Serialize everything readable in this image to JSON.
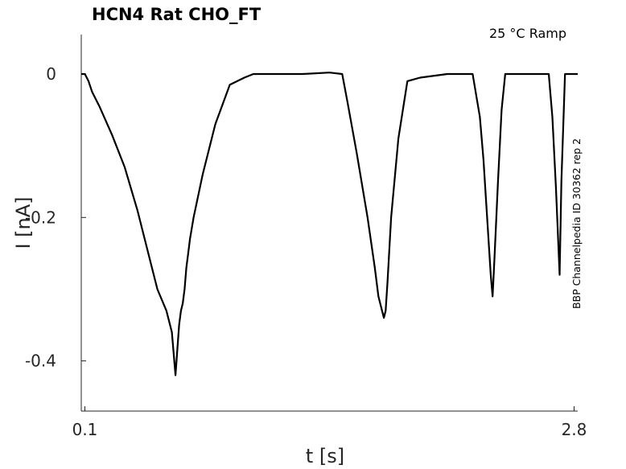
{
  "chart_data": {
    "type": "line",
    "title": "HCN4  Rat  CHO_FT",
    "annotation": "25 °C  Ramp",
    "side_label": "BBP Channelpedia ID 30362 rep 2",
    "xlabel": "t [s]",
    "ylabel": "I [nA]",
    "xlim": [
      0.08,
      2.82
    ],
    "ylim": [
      -0.47,
      0.055
    ],
    "x_ticks": [
      0.1,
      2.8
    ],
    "x_tick_labels": [
      "0.1",
      "2.8"
    ],
    "y_ticks": [
      0,
      -0.2,
      -0.4
    ],
    "y_tick_labels": [
      "0",
      "-0.2",
      "-0.4"
    ],
    "grid": false,
    "series": [
      {
        "color": "#000000",
        "x": [
          0.08,
          0.1,
          0.12,
          0.14,
          0.18,
          0.25,
          0.32,
          0.39,
          0.45,
          0.5,
          0.55,
          0.58,
          0.6,
          0.62,
          0.63,
          0.64,
          0.65,
          0.66,
          0.67,
          0.68,
          0.7,
          0.75,
          0.82,
          0.9,
          0.98,
          1.03,
          1.07,
          1.15,
          1.3,
          1.45,
          1.52,
          1.55,
          1.6,
          1.66,
          1.7,
          1.72,
          1.74,
          1.75,
          1.76,
          1.77,
          1.79,
          1.83,
          1.88,
          1.95,
          2.1,
          2.24,
          2.28,
          2.3,
          2.32,
          2.34,
          2.35,
          2.36,
          2.38,
          2.4,
          2.42,
          2.55,
          2.66,
          2.68,
          2.7,
          2.72,
          2.73,
          2.75,
          2.82
        ],
        "y": [
          0.0,
          0.0,
          -0.01,
          -0.025,
          -0.045,
          -0.085,
          -0.13,
          -0.19,
          -0.25,
          -0.3,
          -0.33,
          -0.36,
          -0.42,
          -0.35,
          -0.33,
          -0.32,
          -0.3,
          -0.27,
          -0.25,
          -0.23,
          -0.2,
          -0.14,
          -0.07,
          -0.015,
          -0.005,
          0.0,
          0.0,
          0.0,
          0.0,
          0.002,
          0.0,
          -0.04,
          -0.11,
          -0.2,
          -0.27,
          -0.31,
          -0.33,
          -0.34,
          -0.33,
          -0.29,
          -0.2,
          -0.09,
          -0.01,
          -0.005,
          0.0,
          0.0,
          -0.06,
          -0.12,
          -0.2,
          -0.28,
          -0.31,
          -0.26,
          -0.15,
          -0.05,
          0.0,
          0.0,
          0.0,
          -0.06,
          -0.16,
          -0.28,
          -0.15,
          0.0,
          0.0
        ]
      }
    ]
  }
}
